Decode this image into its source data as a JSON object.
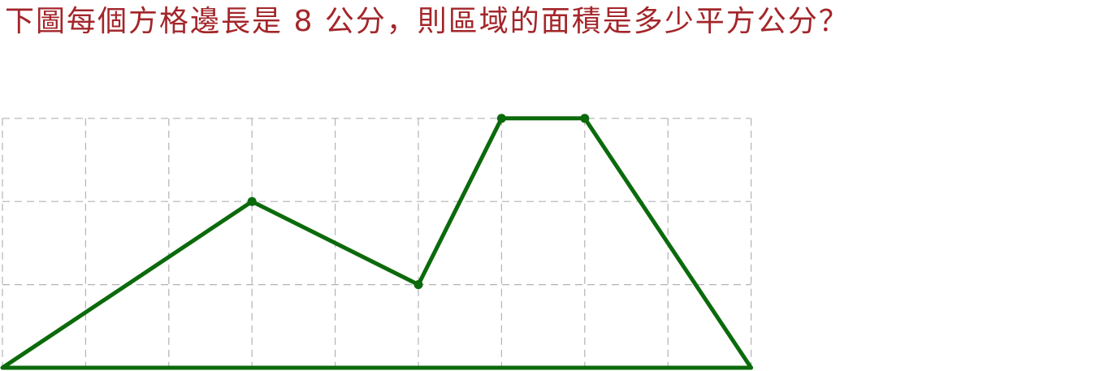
{
  "question": {
    "text": "下圖每個方格邊長是 8 公分，則區域的面積是多少平方公分？"
  },
  "colors": {
    "question_text": "#a3262a",
    "grid_line": "#b3b3b3",
    "shape_outline": "#0b6a0b",
    "vertex_point": "#0b6a0b",
    "background": "#ffffff"
  },
  "grid": {
    "columns": 9,
    "rows": 3,
    "cell_side_length_cm": 8,
    "line_style": "dashed"
  },
  "shape": {
    "vertices": [
      {
        "col": 0,
        "row": 0
      },
      {
        "col": 3,
        "row": 2
      },
      {
        "col": 5,
        "row": 1
      },
      {
        "col": 6,
        "row": 3
      },
      {
        "col": 7,
        "row": 3
      },
      {
        "col": 9,
        "row": 0
      }
    ],
    "labeled_points": [
      {
        "col": 3,
        "row": 2
      },
      {
        "col": 5,
        "row": 1
      },
      {
        "col": 6,
        "row": 3
      },
      {
        "col": 7,
        "row": 3
      }
    ]
  }
}
